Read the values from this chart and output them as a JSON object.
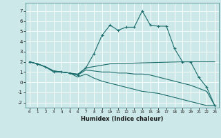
{
  "xlabel": "Humidex (Indice chaleur)",
  "bg_color": "#cce8e8",
  "grid_color": "#ffffff",
  "line_color": "#1a6b6b",
  "xlim": [
    -0.5,
    23.5
  ],
  "ylim": [
    -2.5,
    7.8
  ],
  "xticks": [
    0,
    1,
    2,
    3,
    4,
    5,
    6,
    7,
    8,
    9,
    10,
    11,
    12,
    13,
    14,
    15,
    16,
    17,
    18,
    19,
    20,
    21,
    22,
    23
  ],
  "yticks": [
    -2,
    -1,
    0,
    1,
    2,
    3,
    4,
    5,
    6,
    7
  ],
  "line1": {
    "x": [
      0,
      1,
      2,
      3,
      4,
      5,
      6,
      7,
      8,
      9,
      10,
      11,
      12,
      13,
      14,
      15,
      16,
      17,
      18,
      19,
      20,
      21,
      22,
      23
    ],
    "y": [
      2.0,
      1.8,
      1.5,
      1.0,
      1.0,
      0.9,
      0.7,
      1.4,
      2.8,
      4.6,
      5.6,
      5.1,
      5.4,
      5.4,
      7.0,
      5.6,
      5.5,
      5.5,
      3.3,
      2.0,
      2.0,
      0.5,
      -0.5,
      -2.3
    ]
  },
  "line2": {
    "x": [
      0,
      1,
      2,
      3,
      4,
      5,
      6,
      7,
      10,
      14,
      19,
      20,
      21,
      22,
      23
    ],
    "y": [
      2.0,
      1.8,
      1.5,
      1.1,
      1.0,
      0.9,
      0.8,
      1.4,
      1.8,
      1.9,
      2.0,
      2.0,
      2.0,
      2.0,
      2.0
    ]
  },
  "line3": {
    "x": [
      0,
      1,
      2,
      3,
      4,
      5,
      6,
      7,
      8,
      9,
      10,
      11,
      12,
      13,
      14,
      15,
      16,
      17,
      18,
      19,
      20,
      21,
      22,
      23
    ],
    "y": [
      2.0,
      1.8,
      1.5,
      1.1,
      1.0,
      0.9,
      0.7,
      1.2,
      1.1,
      1.0,
      1.0,
      0.9,
      0.9,
      0.8,
      0.8,
      0.7,
      0.5,
      0.3,
      0.1,
      -0.1,
      -0.3,
      -0.6,
      -0.9,
      -2.3
    ]
  },
  "line4": {
    "x": [
      0,
      1,
      2,
      3,
      4,
      5,
      6,
      7,
      8,
      9,
      10,
      11,
      12,
      13,
      14,
      15,
      16,
      17,
      18,
      19,
      20,
      21,
      22,
      23
    ],
    "y": [
      2.0,
      1.8,
      1.5,
      1.1,
      1.0,
      0.9,
      0.5,
      0.8,
      0.4,
      0.1,
      -0.1,
      -0.3,
      -0.5,
      -0.7,
      -0.9,
      -1.0,
      -1.1,
      -1.3,
      -1.5,
      -1.7,
      -1.9,
      -2.1,
      -2.3,
      -2.3
    ]
  }
}
